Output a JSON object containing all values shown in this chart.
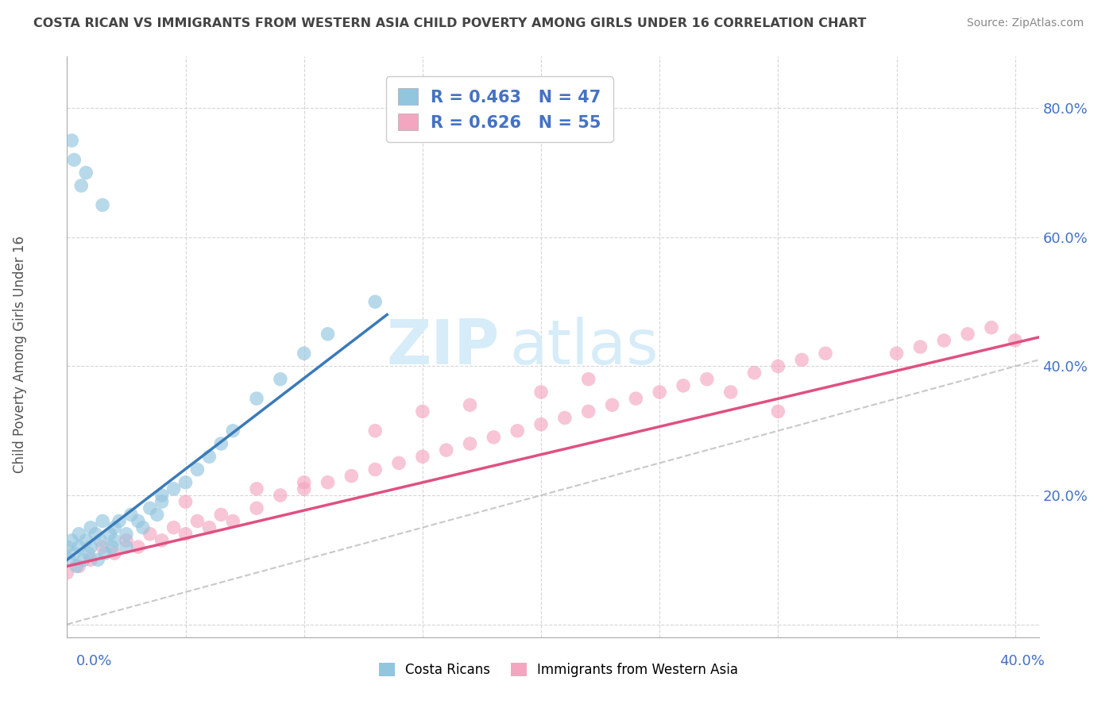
{
  "title": "COSTA RICAN VS IMMIGRANTS FROM WESTERN ASIA CHILD POVERTY AMONG GIRLS UNDER 16 CORRELATION CHART",
  "source": "Source: ZipAtlas.com",
  "ylabel": "Child Poverty Among Girls Under 16",
  "legend_r1": "R = 0.463   N = 47",
  "legend_r2": "R = 0.626   N = 55",
  "legend_label1": "Costa Ricans",
  "legend_label2": "Immigrants from Western Asia",
  "color_blue": "#92c5de",
  "color_pink": "#f4a6c0",
  "color_blue_line": "#3a7ab8",
  "color_pink_line": "#e05080",
  "color_ref_line": "#bbbbbb",
  "watermark_color": "#d6ecf8",
  "x_lim": [
    0.0,
    0.41
  ],
  "y_lim": [
    -0.02,
    0.88
  ],
  "y_ticks": [
    0.0,
    0.2,
    0.4,
    0.6,
    0.8
  ],
  "y_tick_labels": [
    "",
    "20.0%",
    "40.0%",
    "60.0%",
    "80.0%"
  ],
  "costa_rican_x": [
    0.0,
    0.001,
    0.002,
    0.003,
    0.004,
    0.005,
    0.005,
    0.007,
    0.008,
    0.009,
    0.01,
    0.01,
    0.012,
    0.013,
    0.014,
    0.015,
    0.016,
    0.018,
    0.019,
    0.02,
    0.02,
    0.022,
    0.025,
    0.025,
    0.027,
    0.03,
    0.032,
    0.035,
    0.038,
    0.04,
    0.04,
    0.045,
    0.05,
    0.055,
    0.06,
    0.065,
    0.07,
    0.08,
    0.09,
    0.1,
    0.11,
    0.13,
    0.015,
    0.008,
    0.006,
    0.003,
    0.002
  ],
  "costa_rican_y": [
    0.12,
    0.1,
    0.13,
    0.11,
    0.09,
    0.14,
    0.12,
    0.1,
    0.13,
    0.11,
    0.15,
    0.12,
    0.14,
    0.1,
    0.13,
    0.16,
    0.11,
    0.14,
    0.12,
    0.15,
    0.13,
    0.16,
    0.14,
    0.12,
    0.17,
    0.16,
    0.15,
    0.18,
    0.17,
    0.19,
    0.2,
    0.21,
    0.22,
    0.24,
    0.26,
    0.28,
    0.3,
    0.35,
    0.38,
    0.42,
    0.45,
    0.5,
    0.65,
    0.7,
    0.68,
    0.72,
    0.75
  ],
  "western_asia_x": [
    0.0,
    0.005,
    0.01,
    0.015,
    0.02,
    0.025,
    0.03,
    0.035,
    0.04,
    0.045,
    0.05,
    0.055,
    0.06,
    0.065,
    0.07,
    0.08,
    0.09,
    0.1,
    0.11,
    0.12,
    0.13,
    0.14,
    0.15,
    0.16,
    0.17,
    0.18,
    0.19,
    0.2,
    0.21,
    0.22,
    0.23,
    0.24,
    0.25,
    0.26,
    0.27,
    0.28,
    0.29,
    0.3,
    0.31,
    0.32,
    0.13,
    0.15,
    0.17,
    0.2,
    0.22,
    0.05,
    0.08,
    0.1,
    0.3,
    0.35,
    0.36,
    0.37,
    0.38,
    0.39,
    0.4
  ],
  "western_asia_y": [
    0.08,
    0.09,
    0.1,
    0.12,
    0.11,
    0.13,
    0.12,
    0.14,
    0.13,
    0.15,
    0.14,
    0.16,
    0.15,
    0.17,
    0.16,
    0.18,
    0.2,
    0.21,
    0.22,
    0.23,
    0.24,
    0.25,
    0.26,
    0.27,
    0.28,
    0.29,
    0.3,
    0.31,
    0.32,
    0.33,
    0.34,
    0.35,
    0.36,
    0.37,
    0.38,
    0.36,
    0.39,
    0.4,
    0.41,
    0.42,
    0.3,
    0.33,
    0.34,
    0.36,
    0.38,
    0.19,
    0.21,
    0.22,
    0.33,
    0.42,
    0.43,
    0.44,
    0.45,
    0.46,
    0.44
  ],
  "cr_trend_x": [
    0.0,
    0.135
  ],
  "cr_trend_y": [
    0.1,
    0.48
  ],
  "wa_trend_x": [
    0.0,
    0.41
  ],
  "wa_trend_y": [
    0.09,
    0.445
  ]
}
